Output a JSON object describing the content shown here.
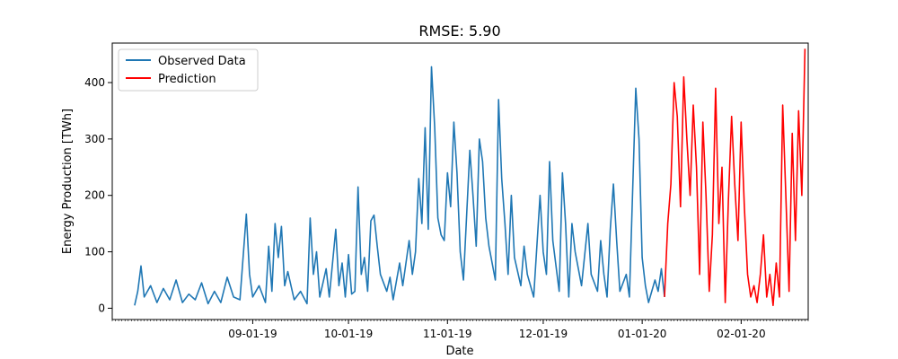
{
  "chart_data": {
    "type": "line",
    "title": "RMSE: 5.90",
    "xlabel": "Date",
    "ylabel": "Energy Production [TWh]",
    "xlim": [
      "2019-07-19",
      "2020-02-22"
    ],
    "ylim": [
      -20,
      470
    ],
    "x_ticks": [
      {
        "date": "2019-09-01",
        "label": "09-01-19"
      },
      {
        "date": "2019-10-01",
        "label": "10-01-19"
      },
      {
        "date": "2019-11-01",
        "label": "11-01-19"
      },
      {
        "date": "2019-12-01",
        "label": "12-01-19"
      },
      {
        "date": "2020-01-01",
        "label": "01-01-20"
      },
      {
        "date": "2020-02-01",
        "label": "02-01-20"
      }
    ],
    "y_ticks": [
      0,
      100,
      200,
      300,
      400
    ],
    "legend": {
      "position": "upper-left"
    },
    "grid": false,
    "series": [
      {
        "name": "Observed Data",
        "color": "#1f77b4",
        "points": [
          [
            "2019-07-26",
            5
          ],
          [
            "2019-07-27",
            30
          ],
          [
            "2019-07-28",
            75
          ],
          [
            "2019-07-29",
            20
          ],
          [
            "2019-07-31",
            40
          ],
          [
            "2019-08-02",
            10
          ],
          [
            "2019-08-04",
            35
          ],
          [
            "2019-08-06",
            15
          ],
          [
            "2019-08-08",
            50
          ],
          [
            "2019-08-10",
            10
          ],
          [
            "2019-08-12",
            25
          ],
          [
            "2019-08-14",
            15
          ],
          [
            "2019-08-16",
            45
          ],
          [
            "2019-08-18",
            8
          ],
          [
            "2019-08-20",
            30
          ],
          [
            "2019-08-22",
            10
          ],
          [
            "2019-08-24",
            55
          ],
          [
            "2019-08-26",
            20
          ],
          [
            "2019-08-28",
            15
          ],
          [
            "2019-08-30",
            167
          ],
          [
            "2019-08-31",
            60
          ],
          [
            "2019-09-01",
            20
          ],
          [
            "2019-09-03",
            40
          ],
          [
            "2019-09-05",
            10
          ],
          [
            "2019-09-06",
            110
          ],
          [
            "2019-09-07",
            30
          ],
          [
            "2019-09-08",
            150
          ],
          [
            "2019-09-09",
            90
          ],
          [
            "2019-09-10",
            145
          ],
          [
            "2019-09-11",
            40
          ],
          [
            "2019-09-12",
            65
          ],
          [
            "2019-09-14",
            15
          ],
          [
            "2019-09-16",
            30
          ],
          [
            "2019-09-18",
            8
          ],
          [
            "2019-09-19",
            160
          ],
          [
            "2019-09-20",
            60
          ],
          [
            "2019-09-21",
            100
          ],
          [
            "2019-09-22",
            20
          ],
          [
            "2019-09-24",
            70
          ],
          [
            "2019-09-25",
            20
          ],
          [
            "2019-09-27",
            140
          ],
          [
            "2019-09-28",
            40
          ],
          [
            "2019-09-29",
            80
          ],
          [
            "2019-09-30",
            20
          ],
          [
            "2019-10-01",
            95
          ],
          [
            "2019-10-02",
            25
          ],
          [
            "2019-10-03",
            30
          ],
          [
            "2019-10-04",
            215
          ],
          [
            "2019-10-05",
            60
          ],
          [
            "2019-10-06",
            90
          ],
          [
            "2019-10-07",
            30
          ],
          [
            "2019-10-08",
            155
          ],
          [
            "2019-10-09",
            165
          ],
          [
            "2019-10-10",
            110
          ],
          [
            "2019-10-11",
            60
          ],
          [
            "2019-10-13",
            30
          ],
          [
            "2019-10-14",
            55
          ],
          [
            "2019-10-15",
            15
          ],
          [
            "2019-10-17",
            80
          ],
          [
            "2019-10-18",
            40
          ],
          [
            "2019-10-20",
            120
          ],
          [
            "2019-10-21",
            60
          ],
          [
            "2019-10-22",
            100
          ],
          [
            "2019-10-23",
            230
          ],
          [
            "2019-10-24",
            150
          ],
          [
            "2019-10-25",
            320
          ],
          [
            "2019-10-26",
            140
          ],
          [
            "2019-10-27",
            428
          ],
          [
            "2019-10-28",
            320
          ],
          [
            "2019-10-29",
            160
          ],
          [
            "2019-10-30",
            130
          ],
          [
            "2019-10-31",
            120
          ],
          [
            "2019-11-01",
            240
          ],
          [
            "2019-11-02",
            180
          ],
          [
            "2019-11-03",
            330
          ],
          [
            "2019-11-04",
            240
          ],
          [
            "2019-11-05",
            100
          ],
          [
            "2019-11-06",
            50
          ],
          [
            "2019-11-08",
            280
          ],
          [
            "2019-11-09",
            200
          ],
          [
            "2019-11-10",
            110
          ],
          [
            "2019-11-11",
            300
          ],
          [
            "2019-11-12",
            260
          ],
          [
            "2019-11-13",
            160
          ],
          [
            "2019-11-14",
            110
          ],
          [
            "2019-11-16",
            50
          ],
          [
            "2019-11-17",
            370
          ],
          [
            "2019-11-18",
            230
          ],
          [
            "2019-11-19",
            150
          ],
          [
            "2019-11-20",
            60
          ],
          [
            "2019-11-21",
            200
          ],
          [
            "2019-11-22",
            90
          ],
          [
            "2019-11-24",
            40
          ],
          [
            "2019-11-25",
            110
          ],
          [
            "2019-11-26",
            60
          ],
          [
            "2019-11-28",
            20
          ],
          [
            "2019-11-30",
            200
          ],
          [
            "2019-12-01",
            100
          ],
          [
            "2019-12-02",
            60
          ],
          [
            "2019-12-03",
            260
          ],
          [
            "2019-12-04",
            120
          ],
          [
            "2019-12-06",
            30
          ],
          [
            "2019-12-07",
            240
          ],
          [
            "2019-12-08",
            150
          ],
          [
            "2019-12-09",
            20
          ],
          [
            "2019-12-10",
            150
          ],
          [
            "2019-12-11",
            100
          ],
          [
            "2019-12-13",
            40
          ],
          [
            "2019-12-15",
            150
          ],
          [
            "2019-12-16",
            60
          ],
          [
            "2019-12-18",
            30
          ],
          [
            "2019-12-19",
            120
          ],
          [
            "2019-12-20",
            60
          ],
          [
            "2019-12-21",
            20
          ],
          [
            "2019-12-22",
            140
          ],
          [
            "2019-12-23",
            220
          ],
          [
            "2019-12-24",
            120
          ],
          [
            "2019-12-25",
            30
          ],
          [
            "2019-12-27",
            60
          ],
          [
            "2019-12-28",
            20
          ],
          [
            "2019-12-30",
            390
          ],
          [
            "2019-12-31",
            300
          ],
          [
            "2020-01-01",
            90
          ],
          [
            "2020-01-02",
            40
          ],
          [
            "2020-01-03",
            10
          ],
          [
            "2020-01-05",
            50
          ],
          [
            "2020-01-06",
            30
          ],
          [
            "2020-01-07",
            70
          ],
          [
            "2020-01-08",
            20
          ]
        ]
      },
      {
        "name": "Prediction",
        "color": "#ff0000",
        "points": [
          [
            "2020-01-08",
            20
          ],
          [
            "2020-01-09",
            150
          ],
          [
            "2020-01-10",
            220
          ],
          [
            "2020-01-11",
            400
          ],
          [
            "2020-01-12",
            340
          ],
          [
            "2020-01-13",
            180
          ],
          [
            "2020-01-14",
            410
          ],
          [
            "2020-01-15",
            300
          ],
          [
            "2020-01-16",
            200
          ],
          [
            "2020-01-17",
            360
          ],
          [
            "2020-01-18",
            250
          ],
          [
            "2020-01-19",
            60
          ],
          [
            "2020-01-20",
            330
          ],
          [
            "2020-01-21",
            200
          ],
          [
            "2020-01-22",
            30
          ],
          [
            "2020-01-23",
            130
          ],
          [
            "2020-01-24",
            390
          ],
          [
            "2020-01-25",
            150
          ],
          [
            "2020-01-26",
            250
          ],
          [
            "2020-01-27",
            10
          ],
          [
            "2020-01-28",
            190
          ],
          [
            "2020-01-29",
            340
          ],
          [
            "2020-01-30",
            220
          ],
          [
            "2020-01-31",
            120
          ],
          [
            "2020-02-01",
            330
          ],
          [
            "2020-02-02",
            180
          ],
          [
            "2020-02-03",
            60
          ],
          [
            "2020-02-04",
            20
          ],
          [
            "2020-02-05",
            40
          ],
          [
            "2020-02-06",
            10
          ],
          [
            "2020-02-07",
            60
          ],
          [
            "2020-02-08",
            130
          ],
          [
            "2020-02-09",
            20
          ],
          [
            "2020-02-10",
            60
          ],
          [
            "2020-02-11",
            5
          ],
          [
            "2020-02-12",
            80
          ],
          [
            "2020-02-13",
            20
          ],
          [
            "2020-02-14",
            360
          ],
          [
            "2020-02-15",
            200
          ],
          [
            "2020-02-16",
            30
          ],
          [
            "2020-02-17",
            310
          ],
          [
            "2020-02-18",
            120
          ],
          [
            "2020-02-19",
            350
          ],
          [
            "2020-02-20",
            200
          ],
          [
            "2020-02-21",
            460
          ]
        ]
      }
    ]
  }
}
